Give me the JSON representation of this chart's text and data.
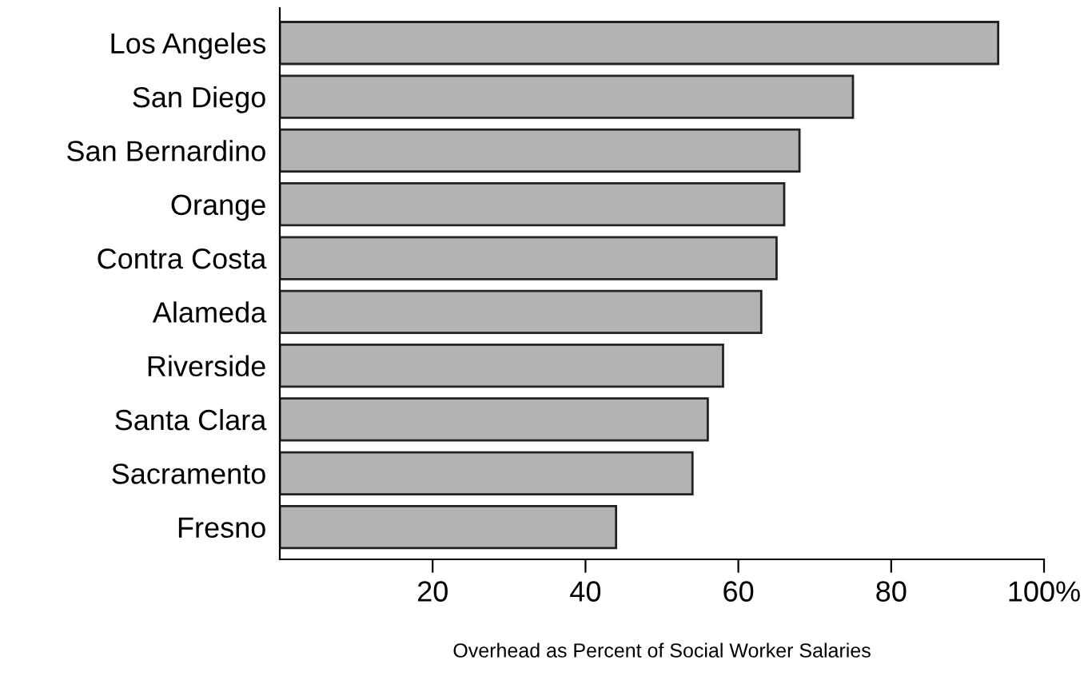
{
  "chart_data": {
    "type": "bar",
    "orientation": "horizontal",
    "xlabel": "Overhead as Percent of Social Worker Salaries",
    "categories": [
      "Los Angeles",
      "San Diego",
      "San Bernardino",
      "Orange",
      "Contra Costa",
      "Alameda",
      "Riverside",
      "Santa Clara",
      "Sacramento",
      "Fresno"
    ],
    "values": [
      94,
      75,
      68,
      66,
      65,
      63,
      58,
      56,
      54,
      44
    ],
    "color": "#b3b3b3",
    "xlim": [
      0,
      100
    ],
    "xticks": [
      20,
      40,
      60,
      80,
      {
        "value": 100,
        "label": "100%"
      }
    ],
    "grid": false,
    "legend": false
  }
}
